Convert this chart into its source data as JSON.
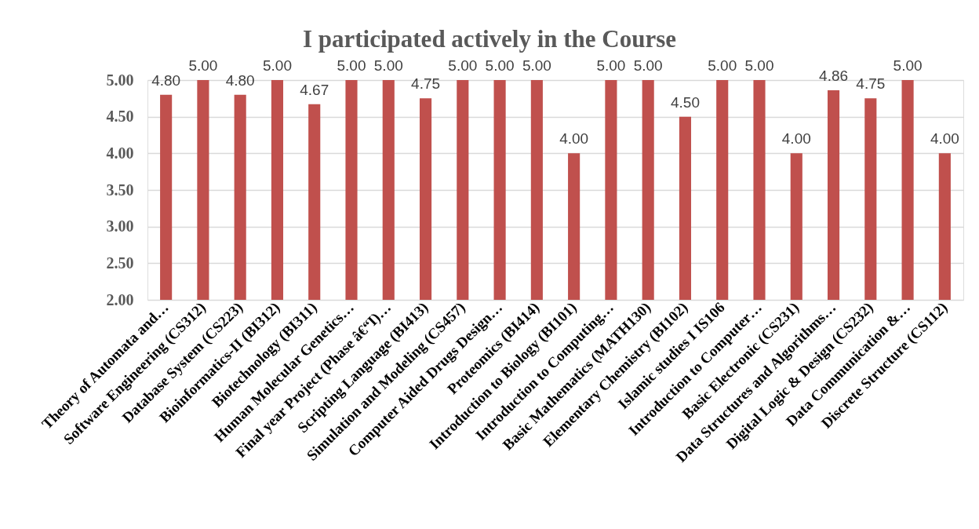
{
  "chart_data": {
    "type": "bar",
    "title": "I participated actively in the Course",
    "categories": [
      "Theory of Automata and…",
      "Software Engineering (CS312)",
      "Database System (CS223)",
      "Bioinformatics-II (BI312)",
      "Biotechnology (BI311)",
      "Human Molecular Genetics…",
      "Final year Project (Phase â€“I)…",
      "Scripting Language (BI413)",
      "Simulation and Modeling (CS457)",
      "Computer Aided Drugs Design…",
      "Proteomics (BI414)",
      "Introduction to Biology (BI101)",
      "Introduction to Computing…",
      "Basic Mathematics (MATH130)",
      "Elementary Chemistry (BI102)",
      "Islamic studies I IS106",
      "Introduction to Computer…",
      "Basic Electronic (CS231)",
      "Data Structures and Algorithms…",
      "Digital Logic & Design (CS232)",
      "Data Communication &…",
      "Discrete Structure (CS112)"
    ],
    "values": [
      4.8,
      5.0,
      4.8,
      5.0,
      4.67,
      5.0,
      5.0,
      4.75,
      5.0,
      5.0,
      5.0,
      4.0,
      5.0,
      5.0,
      4.5,
      5.0,
      5.0,
      4.0,
      4.86,
      4.75,
      5.0,
      4.0
    ],
    "value_labels": [
      "4.80",
      "5.00",
      "4.80",
      "5.00",
      "4.67",
      "5.00",
      "5.00",
      "4.75",
      "5.00",
      "5.00",
      "5.00",
      "4.00",
      "5.00",
      "5.00",
      "4.50",
      "5.00",
      "5.00",
      "4.00",
      "4.86",
      "4.75",
      "5.00",
      "4.00"
    ],
    "color": "#c0504d",
    "ylim": [
      2,
      5
    ],
    "yticks": [
      {
        "value": 2,
        "label": "2.00"
      },
      {
        "value": 2.5,
        "label": "2.50"
      },
      {
        "value": 3,
        "label": "3.00"
      },
      {
        "value": 3.5,
        "label": "3.50"
      },
      {
        "value": 4,
        "label": "4.00"
      },
      {
        "value": 4.5,
        "label": "4.50"
      },
      {
        "value": 5,
        "label": "5.00"
      }
    ],
    "grid": "y"
  }
}
